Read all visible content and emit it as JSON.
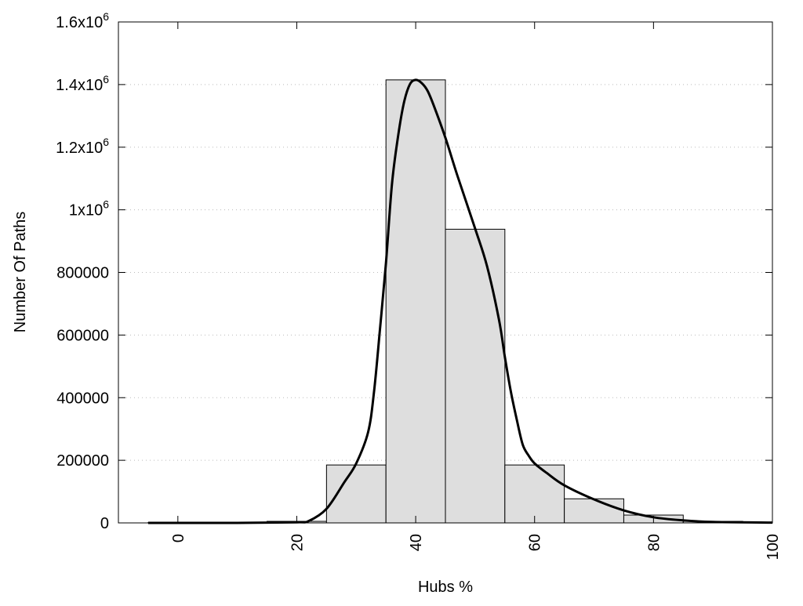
{
  "chart_data": {
    "type": "bar",
    "title": "",
    "xlabel": "Hubs %",
    "ylabel": "Number Of Paths",
    "xlim": [
      -10,
      100
    ],
    "ylim": [
      0,
      1600000
    ],
    "grid": "horizontal dotted",
    "x_ticks": [
      0,
      20,
      40,
      60,
      80,
      100
    ],
    "x_tick_labels": [
      "0",
      "20",
      "40",
      "60",
      "80",
      "100"
    ],
    "y_ticks": [
      0,
      200000,
      400000,
      600000,
      800000,
      1000000,
      1200000,
      1400000,
      1600000
    ],
    "y_tick_labels": [
      {
        "base": "0",
        "exp": ""
      },
      {
        "base": "200000",
        "exp": ""
      },
      {
        "base": "400000",
        "exp": ""
      },
      {
        "base": "600000",
        "exp": ""
      },
      {
        "base": "800000",
        "exp": ""
      },
      {
        "base": "1x10",
        "exp": "6"
      },
      {
        "base": "1.2x10",
        "exp": "6"
      },
      {
        "base": "1.4x10",
        "exp": "6"
      },
      {
        "base": "1.6x10",
        "exp": "6"
      }
    ],
    "bin_width": 10,
    "bars": {
      "centers": [
        0,
        10,
        20,
        30,
        40,
        50,
        60,
        70,
        80,
        90
      ],
      "values": [
        1000,
        1000,
        5000,
        185000,
        1415000,
        938000,
        185000,
        77000,
        25000,
        5000
      ],
      "fill": "#dedede"
    },
    "curve": {
      "x": [
        -5,
        10,
        20,
        22,
        25,
        28,
        30,
        32,
        33,
        34,
        35,
        36,
        37,
        38,
        39,
        40,
        41,
        42,
        43,
        45,
        47,
        50,
        52,
        54,
        55,
        56,
        57,
        58,
        59,
        60,
        62,
        65,
        70,
        75,
        80,
        85,
        90,
        100
      ],
      "y": [
        0,
        0,
        2000,
        6000,
        45000,
        130000,
        190000,
        290000,
        420000,
        620000,
        830000,
        1080000,
        1230000,
        1340000,
        1400000,
        1415000,
        1405000,
        1380000,
        1335000,
        1230000,
        1110000,
        940000,
        820000,
        650000,
        530000,
        420000,
        330000,
        250000,
        215000,
        190000,
        160000,
        120000,
        75000,
        40000,
        18000,
        8000,
        3000,
        1000
      ],
      "color": "#000000"
    }
  }
}
